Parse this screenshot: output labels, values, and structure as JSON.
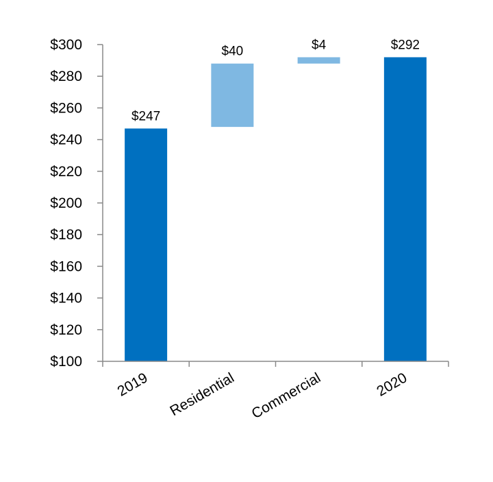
{
  "chart_data": {
    "type": "bar",
    "subtype": "waterfall",
    "title": "",
    "xlabel": "",
    "ylabel": "",
    "ylim": [
      100,
      300
    ],
    "y_ticks": [
      "$100",
      "$120",
      "$140",
      "$160",
      "$180",
      "$200",
      "$220",
      "$240",
      "$260",
      "$280",
      "$300"
    ],
    "y_tick_values": [
      100,
      120,
      140,
      160,
      180,
      200,
      220,
      240,
      260,
      280,
      300
    ],
    "categories": [
      "2019",
      "Residential",
      "Commercial",
      "2020"
    ],
    "bars": [
      {
        "category": "2019",
        "kind": "total",
        "base": 100,
        "top": 247,
        "label": "$247",
        "color": "#0070c0"
      },
      {
        "category": "Residential",
        "kind": "increase",
        "base": 248,
        "top": 288,
        "label": "$40",
        "color": "#7fb8e2"
      },
      {
        "category": "Commercial",
        "kind": "increase",
        "base": 288,
        "top": 292,
        "label": "$4",
        "color": "#7fb8e2"
      },
      {
        "category": "2020",
        "kind": "total",
        "base": 100,
        "top": 292,
        "label": "$292",
        "color": "#0070c0"
      }
    ],
    "grid": false,
    "legend": "none",
    "axis_color": "#888888"
  }
}
